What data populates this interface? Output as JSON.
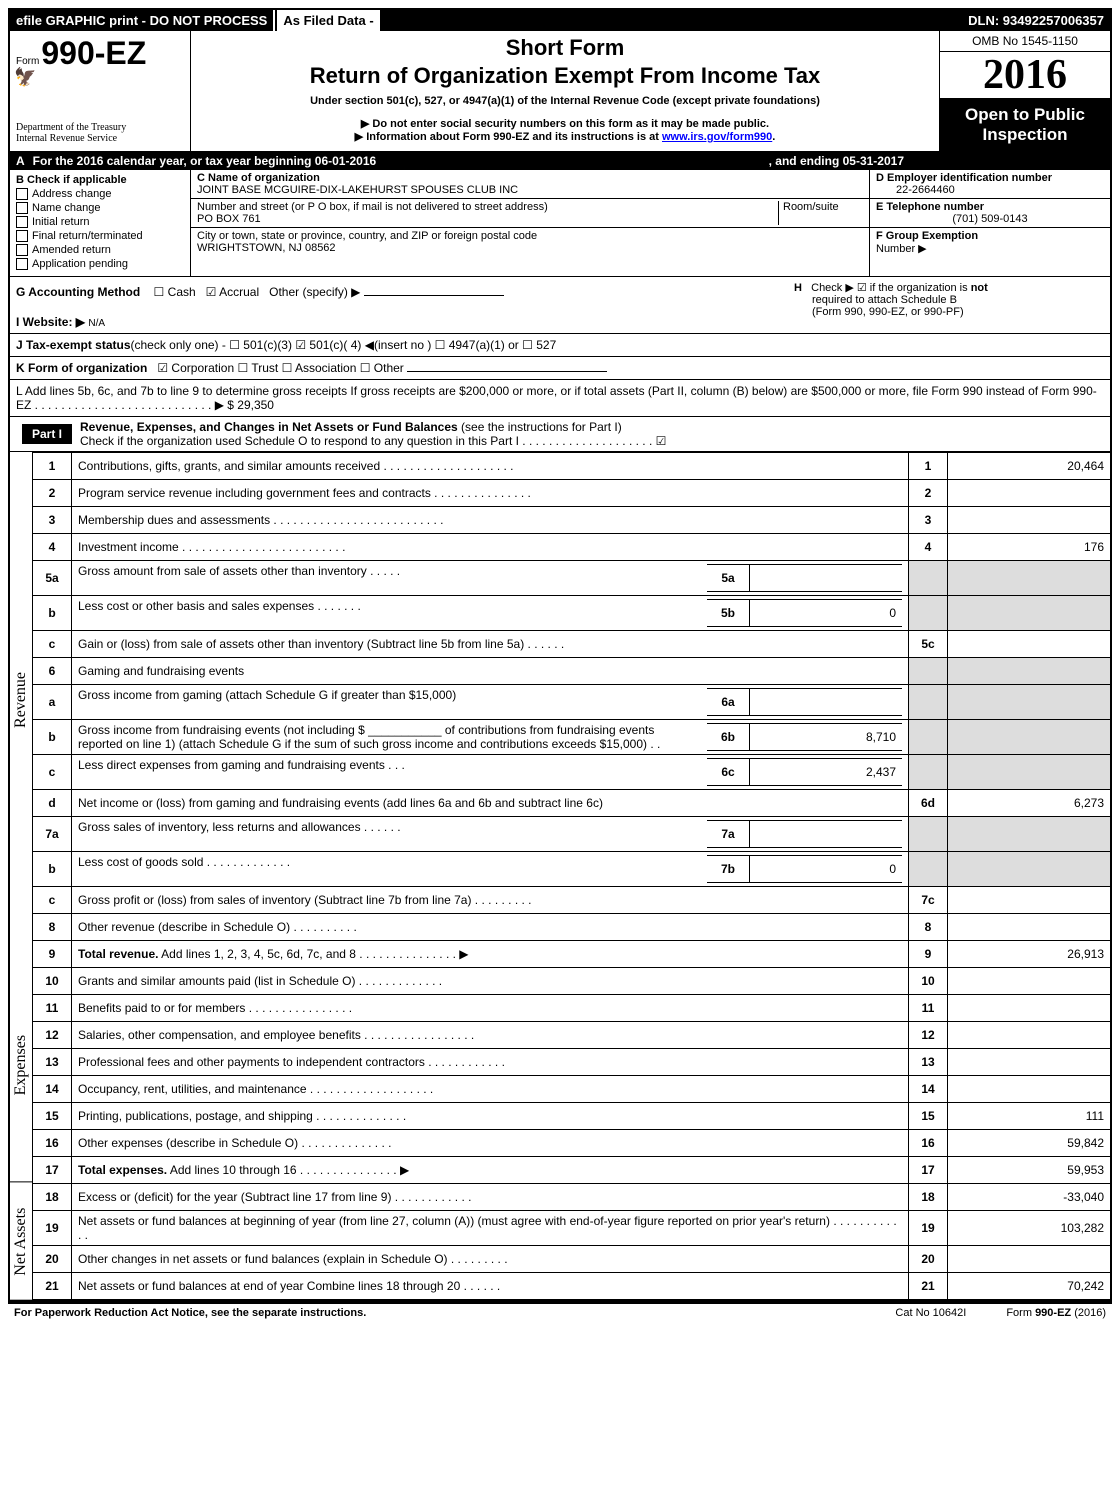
{
  "topbar": {
    "efile": "efile GRAPHIC print - DO NOT PROCESS",
    "asfiled": "As Filed Data -",
    "dln": "DLN: 93492257006357"
  },
  "header": {
    "form_small": "Form",
    "form_big": "990-EZ",
    "dept1": "Department of the Treasury",
    "dept2": "Internal Revenue Service",
    "short": "Short Form",
    "return": "Return of Organization Exempt From Income Tax",
    "under": "Under section 501(c), 527, or 4947(a)(1) of the Internal Revenue Code (except private foundations)",
    "donot": "▶ Do not enter social security numbers on this form as it may be made public.",
    "info_pre": "▶ Information about Form 990-EZ and its instructions is at ",
    "info_link": "www.irs.gov/form990",
    "info_post": ".",
    "omb": "OMB No 1545-1150",
    "year": "2016",
    "open1": "Open to Public",
    "open2": "Inspection"
  },
  "row_a": {
    "label": "A",
    "text": "For the 2016 calendar year, or tax year beginning 06-01-2016",
    "end": ", and ending 05-31-2017"
  },
  "b_left": {
    "title": "B  Check if applicable",
    "items": [
      "Address change",
      "Name change",
      "Initial return",
      "Final return/terminated",
      "Amended return",
      "Application pending"
    ]
  },
  "b_mid": {
    "c_label": "C Name of organization",
    "c_val": "JOINT BASE MCGUIRE-DIX-LAKEHURST SPOUSES CLUB INC",
    "addr_label": "Number and street (or P  O  box, if mail is not delivered to street address)",
    "room_label": "Room/suite",
    "addr_val": "PO BOX 761",
    "city_label": "City or town, state or province, country, and ZIP or foreign postal code",
    "city_val": "WRIGHTSTOWN, NJ  08562"
  },
  "b_right": {
    "d_label": "D Employer identification number",
    "d_val": "22-2664460",
    "e_label": "E Telephone number",
    "e_val": "(701) 509-0143",
    "f_label": "F Group Exemption",
    "f_label2": "Number    ▶"
  },
  "line_g": {
    "label": "G Accounting Method",
    "cash": "Cash",
    "accrual": "Accrual",
    "other": "Other (specify) ▶"
  },
  "line_h": {
    "label": "H",
    "text1": "Check ▶   ☑  if the organization is",
    "text1b": "not",
    "text2": "required to attach Schedule B",
    "text3": "(Form 990, 990-EZ, or 990-PF)"
  },
  "line_i": {
    "label": "I Website: ▶",
    "val": "N/A"
  },
  "line_j": {
    "label": "J Tax-exempt status",
    "text": "(check only one) -  ☐ 501(c)(3)  ☑ 501(c)( 4) ◀(insert no )  ☐ 4947(a)(1) or  ☐ 527"
  },
  "line_k": {
    "label": "K Form of organization",
    "text": "☑ Corporation   ☐ Trust   ☐ Association   ☐ Other"
  },
  "line_l": {
    "text": "L Add lines 5b, 6c, and 7b to line 9 to determine gross receipts  If gross receipts are $200,000 or more, or if total assets (Part II, column (B) below) are $500,000 or more, file Form 990 instead of Form 990-EZ  .  .  .  .  .  .  .  .  .  .  .  .  .  .  .  .  .  .  .  .  .  .  .  .  .  .  .  ▶ $ 29,350"
  },
  "part1": {
    "tab": "Part I",
    "title": "Revenue, Expenses, and Changes in Net Assets or Fund Balances",
    "subtitle": "(see the instructions for Part I)",
    "check": "Check if the organization used Schedule O to respond to any question in this Part I .  .  .  .  .  .  .  .  .  .  .  .  .  .  .  .  .  .  .  .  ☑"
  },
  "v_labels": {
    "revenue": "Revenue",
    "expenses": "Expenses",
    "netassets": "Net Assets"
  },
  "rows": [
    {
      "n": "1",
      "t": "Contributions, gifts, grants, and similar amounts received .  .  .  .  .  .  .  .  .  .  .  .  .  .  .  .  .  .  .  .",
      "sn": "1",
      "amt": "20,464"
    },
    {
      "n": "2",
      "t": "Program service revenue including government fees and contracts .  .  .  .  .  .  .  .  .  .  .  .  .  .  .",
      "sn": "2",
      "amt": ""
    },
    {
      "n": "3",
      "t": "Membership dues and assessments .  .  .  .  .  .  .  .  .  .  .  .  .  .  .  .  .  .  .  .  .  .  .  .  .  .",
      "sn": "3",
      "amt": ""
    },
    {
      "n": "4",
      "t": "Investment income .  .  .  .  .  .  .  .  .  .  .  .  .  .  .  .  .  .  .  .  .  .  .  .  .",
      "sn": "4",
      "amt": "176"
    },
    {
      "n": "5a",
      "t": "Gross amount from sale of assets other than inventory .  .  .  .  .",
      "in": "5a",
      "iv": "",
      "sn": "",
      "amt": "",
      "shade": true
    },
    {
      "n": "b",
      "t": "Less  cost or other basis and sales expenses .  .  .  .  .  .  .",
      "in": "5b",
      "iv": "0",
      "sn": "",
      "amt": "",
      "shade": true
    },
    {
      "n": "c",
      "t": "Gain or (loss) from sale of assets other than inventory (Subtract line 5b from line 5a) .  .  .  .  .  .",
      "sn": "5c",
      "amt": ""
    },
    {
      "n": "6",
      "t": "Gaming and fundraising events",
      "sn": "",
      "amt": "",
      "shade": true
    },
    {
      "n": "a",
      "t": "Gross income from gaming (attach Schedule G if greater than $15,000)",
      "in": "6a",
      "iv": "",
      "sn": "",
      "amt": "",
      "shade": true
    },
    {
      "n": "b",
      "t": "Gross income from fundraising events (not including $ ___________ of contributions from fundraising events reported on line 1) (attach Schedule G if the sum of such gross income and contributions exceeds $15,000)   .   .",
      "in": "6b",
      "iv": "8,710",
      "sn": "",
      "amt": "",
      "shade": true
    },
    {
      "n": "c",
      "t": "Less  direct expenses from gaming and fundraising events     .  .  .",
      "in": "6c",
      "iv": "2,437",
      "sn": "",
      "amt": "",
      "shade": true
    },
    {
      "n": "d",
      "t": "Net income or (loss) from gaming and fundraising events (add lines 6a and 6b and subtract line 6c)",
      "sn": "6d",
      "amt": "6,273"
    },
    {
      "n": "7a",
      "t": "Gross sales of inventory, less returns and allowances .  .  .  .  .  .",
      "in": "7a",
      "iv": "",
      "sn": "",
      "amt": "",
      "shade": true
    },
    {
      "n": "b",
      "t": "Less  cost of goods sold           .  .  .  .  .  .  .  .  .  .  .  .  .",
      "in": "7b",
      "iv": "0",
      "sn": "",
      "amt": "",
      "shade": true
    },
    {
      "n": "c",
      "t": "Gross profit or (loss) from sales of inventory (Subtract line 7b from line 7a) .  .  .  .  .  .  .  .  .",
      "sn": "7c",
      "amt": ""
    },
    {
      "n": "8",
      "t": "Other revenue (describe in Schedule O)                            .  .  .  .  .  .  .  .  .  .",
      "sn": "8",
      "amt": ""
    },
    {
      "n": "9",
      "t": "Total revenue. Add lines 1, 2, 3, 4, 5c, 6d, 7c, and 8 .  .  .  .  .  .  .  .  .  .  .  .  .  .  .      ▶",
      "sn": "9",
      "amt": "26,913",
      "bold": true
    },
    {
      "n": "10",
      "t": "Grants and similar amounts paid (list in Schedule O)             .  .  .  .  .  .  .  .  .  .  .  .  .",
      "sn": "10",
      "amt": ""
    },
    {
      "n": "11",
      "t": "Benefits paid to or for members                    .  .  .  .  .  .  .  .  .  .  .  .  .  .  .  .",
      "sn": "11",
      "amt": ""
    },
    {
      "n": "12",
      "t": "Salaries, other compensation, and employee benefits .  .  .  .  .  .  .  .  .  .  .  .  .  .  .  .  .",
      "sn": "12",
      "amt": ""
    },
    {
      "n": "13",
      "t": "Professional fees and other payments to independent contractors  .  .  .  .  .  .  .  .  .  .  .  .",
      "sn": "13",
      "amt": ""
    },
    {
      "n": "14",
      "t": "Occupancy, rent, utilities, and maintenance .  .  .  .  .  .  .  .  .  .  .  .  .  .  .  .  .  .  .",
      "sn": "14",
      "amt": ""
    },
    {
      "n": "15",
      "t": "Printing, publications, postage, and shipping             .  .  .  .  .  .  .  .  .  .  .  .  .  .",
      "sn": "15",
      "amt": "111"
    },
    {
      "n": "16",
      "t": "Other expenses (describe in Schedule O)                 .  .  .  .  .  .  .  .  .  .  .  .  .  .",
      "sn": "16",
      "amt": "59,842"
    },
    {
      "n": "17",
      "t": "Total expenses. Add lines 10 through 16          .  .  .  .  .  .  .  .  .  .  .  .  .  .  .        ▶",
      "sn": "17",
      "amt": "59,953",
      "bold": true
    },
    {
      "n": "18",
      "t": "Excess or (deficit) for the year (Subtract line 17 from line 9)       .  .  .  .  .  .  .  .  .  .  .  .",
      "sn": "18",
      "amt": "-33,040"
    },
    {
      "n": "19",
      "t": "Net assets or fund balances at beginning of year (from line 27, column (A)) (must agree with end-of-year figure reported on prior year's return)               .  .  .  .  .  .  .  .  .  .  .  .",
      "sn": "19",
      "amt": "103,282"
    },
    {
      "n": "20",
      "t": "Other changes in net assets or fund balances (explain in Schedule O)    .  .  .  .  .  .  .  .  .",
      "sn": "20",
      "amt": ""
    },
    {
      "n": "21",
      "t": "Net assets or fund balances at end of year  Combine lines 18 through 20         .  .  .  .  .  .",
      "sn": "21",
      "amt": "70,242"
    }
  ],
  "footer": {
    "l": "For Paperwork Reduction Act Notice, see the separate instructions.",
    "c": "Cat No  10642I",
    "r": "Form 990-EZ (2016)"
  }
}
